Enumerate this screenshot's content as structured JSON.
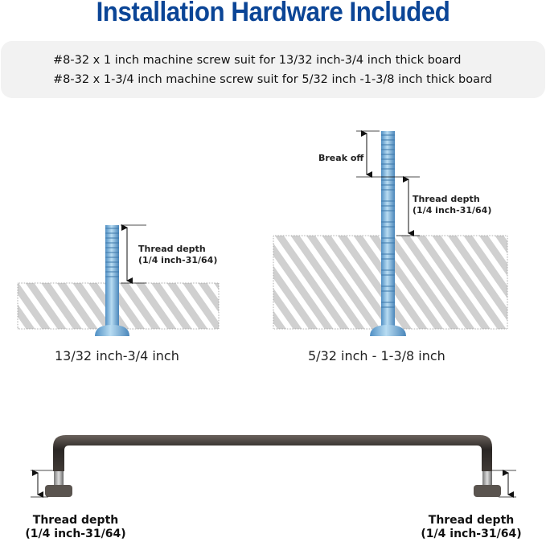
{
  "title": "Installation Hardware Included",
  "info": {
    "line1": "#8-32 x 1 inch machine screw suit for  13/32 inch-3/4 inch thick board",
    "line2": "#8-32 x 1-3/4 inch machine screw suit for 5/32 inch -1-3/8 inch thick board"
  },
  "left_diagram": {
    "thread_label": "Thread depth",
    "thread_range": "(1/4 inch-31/64)",
    "caption": "13/32 inch-3/4 inch"
  },
  "right_diagram": {
    "break_label": "Break off",
    "thread_label": "Thread depth",
    "thread_range": "(1/4 inch-31/64)",
    "caption": "5/32 inch - 1-3/8 inch"
  },
  "handle": {
    "left_label": "Thread depth",
    "left_range": "(1/4 inch-31/64)",
    "right_label": "Thread depth",
    "right_range": "(1/4 inch-31/64)"
  },
  "colors": {
    "title": "#0b4596",
    "screw": "#7fb4dc",
    "board_stripe": "#d0d0d0",
    "handle": "#2e2a28"
  }
}
